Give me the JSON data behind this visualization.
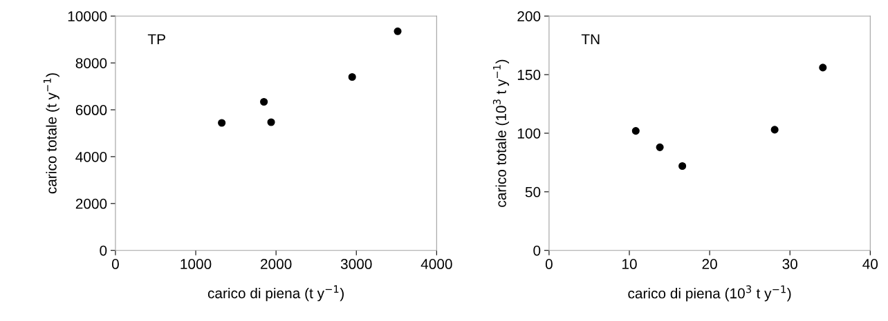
{
  "chart_data": [
    {
      "type": "scatter",
      "xlabel": "carico di piena (t y$^{−1}$)",
      "ylabel": "carico totale (t y$^{−1}$)",
      "annotations": [
        "TP"
      ],
      "x": [
        1324,
        1849,
        1939,
        2948,
        3515
      ],
      "series": [
        {
          "color": "#000000",
          "values": [
            5440,
            6340,
            5470,
            7400,
            9350
          ]
        }
      ],
      "xlim": [
        0,
        4000
      ],
      "xticks": [
        0,
        1000,
        2000,
        3000,
        4000
      ],
      "ylim": [
        0,
        10000
      ],
      "yticks": [
        0,
        2000,
        4000,
        6000,
        8000,
        10000
      ],
      "marker": "circle",
      "grid": false,
      "legend": false
    },
    {
      "type": "scatter",
      "xlabel": "carico di piena (10$^{3}$ t y$^{−1}$)",
      "ylabel": "carico totale (10$^{3}$ t y$^{−1}$)",
      "annotations": [
        "TN"
      ],
      "x": [
        10.8,
        13.8,
        16.6,
        28.1,
        34.1
      ],
      "series": [
        {
          "color": "#000000",
          "values": [
            102,
            88,
            72,
            103,
            156
          ]
        }
      ],
      "xlim": [
        0,
        40
      ],
      "xticks": [
        0,
        10,
        20,
        30,
        40
      ],
      "ylim": [
        0,
        200
      ],
      "yticks": [
        0,
        50,
        100,
        150,
        200
      ],
      "marker": "circle",
      "grid": false,
      "legend": false
    }
  ]
}
